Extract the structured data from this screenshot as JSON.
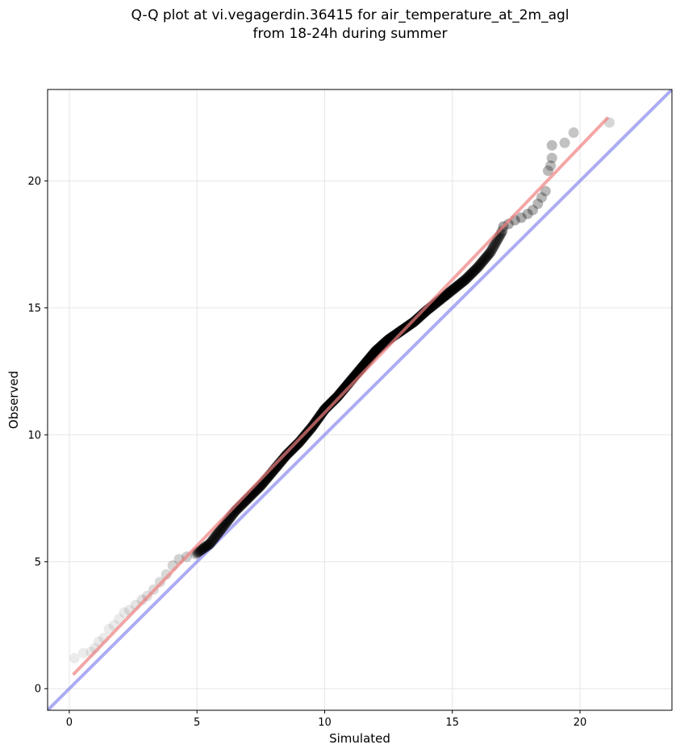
{
  "chart_data": {
    "type": "scatter",
    "title_line1": "Q-Q plot at vi.vegagerdin.36415 for air_temperature_at_2m_agl",
    "title_line2": "from 18-24h during summer",
    "xlabel": "Simulated",
    "ylabel": "Observed",
    "xlim": [
      -0.85,
      23.6
    ],
    "ylim": [
      -0.85,
      23.6
    ],
    "xticks": [
      0,
      5,
      10,
      15,
      20
    ],
    "yticks": [
      0,
      5,
      10,
      15,
      20
    ],
    "grid": true,
    "colors": {
      "points": "#000000",
      "fit_line": "#f08080",
      "identity_line": "#8080ee",
      "grid": "#e6e6e6"
    },
    "identity_line": {
      "name": "",
      "points": [
        [
          -0.85,
          -0.85
        ],
        [
          23.6,
          23.6
        ]
      ]
    },
    "fit_line": {
      "name": "",
      "points": [
        [
          0.15,
          0.55
        ],
        [
          21.1,
          22.5
        ]
      ]
    },
    "sparse_points": [
      [
        0.2,
        1.2
      ],
      [
        0.55,
        1.4
      ],
      [
        0.85,
        1.45
      ],
      [
        1.0,
        1.6
      ],
      [
        1.15,
        1.85
      ],
      [
        1.35,
        2.0
      ],
      [
        1.55,
        2.35
      ],
      [
        1.75,
        2.5
      ],
      [
        1.95,
        2.75
      ],
      [
        2.15,
        3.0
      ],
      [
        2.35,
        3.1
      ],
      [
        2.6,
        3.3
      ],
      [
        2.85,
        3.5
      ],
      [
        3.05,
        3.65
      ],
      [
        3.3,
        3.9
      ],
      [
        3.55,
        4.2
      ],
      [
        3.8,
        4.5
      ],
      [
        4.05,
        4.85
      ],
      [
        4.3,
        5.1
      ],
      [
        4.6,
        5.2
      ],
      [
        4.95,
        5.3
      ],
      [
        17.0,
        18.2
      ],
      [
        17.2,
        18.3
      ],
      [
        17.45,
        18.45
      ],
      [
        17.7,
        18.55
      ],
      [
        17.95,
        18.7
      ],
      [
        18.15,
        18.85
      ],
      [
        18.35,
        19.1
      ],
      [
        18.5,
        19.35
      ],
      [
        18.65,
        19.6
      ],
      [
        18.75,
        20.4
      ],
      [
        18.85,
        20.6
      ],
      [
        18.9,
        20.9
      ],
      [
        18.9,
        21.4
      ],
      [
        19.4,
        21.5
      ],
      [
        19.75,
        21.9
      ],
      [
        21.15,
        22.3
      ]
    ],
    "dense_curve": [
      [
        5.0,
        5.35
      ],
      [
        5.5,
        5.7
      ],
      [
        6.0,
        6.35
      ],
      [
        6.5,
        7.0
      ],
      [
        7.0,
        7.5
      ],
      [
        7.5,
        8.0
      ],
      [
        8.0,
        8.6
      ],
      [
        8.5,
        9.2
      ],
      [
        9.0,
        9.7
      ],
      [
        9.5,
        10.3
      ],
      [
        10.0,
        11.0
      ],
      [
        10.5,
        11.5
      ],
      [
        11.0,
        12.1
      ],
      [
        11.5,
        12.7
      ],
      [
        12.0,
        13.3
      ],
      [
        12.5,
        13.75
      ],
      [
        13.0,
        14.1
      ],
      [
        13.5,
        14.45
      ],
      [
        14.0,
        14.9
      ],
      [
        14.5,
        15.3
      ],
      [
        15.0,
        15.7
      ],
      [
        15.5,
        16.1
      ],
      [
        16.0,
        16.6
      ],
      [
        16.5,
        17.2
      ],
      [
        17.0,
        18.1
      ]
    ]
  }
}
